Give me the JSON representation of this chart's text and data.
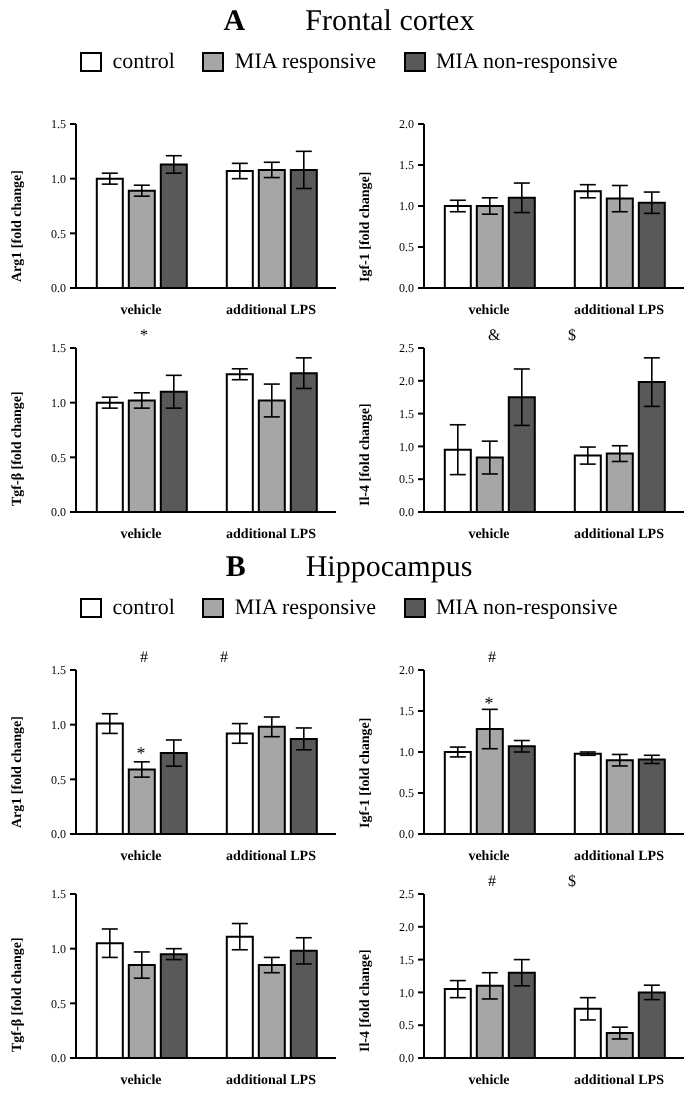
{
  "chart_data": [
    {
      "type": "bar",
      "title": "A",
      "subtitle": "Frontal cortex",
      "legend": "top",
      "ylabel": "Arg1 [fold change]",
      "categories": [
        "vehicle",
        "additional LPS"
      ],
      "ylim": [
        0,
        1.5
      ],
      "yticks": [
        {
          "value": 0,
          "label": "0.0"
        },
        {
          "value": 0.5,
          "label": "0.5"
        },
        {
          "value": 1,
          "label": "1.0"
        },
        {
          "value": 1.5,
          "label": "1.5"
        }
      ],
      "grid": false,
      "series": [
        {
          "name": "control",
          "color": "#ffffff",
          "values": [
            1.0,
            1.07
          ],
          "errors": [
            0.05,
            0.07
          ]
        },
        {
          "name": "MIA responsive",
          "color": "#a6a6a6",
          "values": [
            0.89,
            1.08
          ],
          "errors": [
            0.05,
            0.07
          ]
        },
        {
          "name": "MIA non-responsive",
          "color": "#595959",
          "values": [
            1.13,
            1.08
          ],
          "errors": [
            0.08,
            0.17
          ]
        }
      ]
    },
    {
      "type": "bar",
      "ylabel": "Igf-1 [fold change]",
      "categories": [
        "vehicle",
        "additional LPS"
      ],
      "ylim": [
        0,
        2
      ],
      "yticks": [
        {
          "value": 0,
          "label": "0.0"
        },
        {
          "value": 0.5,
          "label": "0.5"
        },
        {
          "value": 1,
          "label": "1.0"
        },
        {
          "value": 1.5,
          "label": "1.5"
        },
        {
          "value": 2,
          "label": "2.0"
        }
      ],
      "grid": false,
      "series": [
        {
          "color": "#ffffff",
          "values": [
            1.0,
            1.18
          ],
          "errors": [
            0.07,
            0.08
          ]
        },
        {
          "color": "#a6a6a6",
          "values": [
            1.0,
            1.09
          ],
          "errors": [
            0.1,
            0.16
          ]
        },
        {
          "color": "#595959",
          "values": [
            1.1,
            1.04
          ],
          "errors": [
            0.18,
            0.13
          ]
        }
      ]
    },
    {
      "type": "bar",
      "ylabel": "Tgf-β [fold change]",
      "categories": [
        "vehicle",
        "additional LPS"
      ],
      "ylim": [
        0,
        1.5
      ],
      "yticks": [
        {
          "value": 0,
          "label": "0.0"
        },
        {
          "value": 0.5,
          "label": "0.5"
        },
        {
          "value": 1,
          "label": "1.0"
        },
        {
          "value": 1.5,
          "label": "1.5"
        }
      ],
      "grid": false,
      "annotations": [
        "*"
      ],
      "series": [
        {
          "color": "#ffffff",
          "values": [
            1.0,
            1.26
          ],
          "errors": [
            0.05,
            0.05
          ]
        },
        {
          "color": "#a6a6a6",
          "values": [
            1.02,
            1.02
          ],
          "errors": [
            0.07,
            0.15
          ]
        },
        {
          "color": "#595959",
          "values": [
            1.1,
            1.27
          ],
          "errors": [
            0.15,
            0.14
          ]
        }
      ]
    },
    {
      "type": "bar",
      "ylabel": "Il-4 [fold change]",
      "categories": [
        "vehicle",
        "additional LPS"
      ],
      "ylim": [
        0,
        2.5
      ],
      "yticks": [
        {
          "value": 0,
          "label": "0.0"
        },
        {
          "value": 0.5,
          "label": "0.5"
        },
        {
          "value": 1,
          "label": "1.0"
        },
        {
          "value": 1.5,
          "label": "1.5"
        },
        {
          "value": 2,
          "label": "2.0"
        },
        {
          "value": 2.5,
          "label": "2.5"
        }
      ],
      "grid": false,
      "annotations": [
        "&",
        "$"
      ],
      "series": [
        {
          "color": "#ffffff",
          "values": [
            0.95,
            0.86
          ],
          "errors": [
            0.38,
            0.13
          ]
        },
        {
          "color": "#a6a6a6",
          "values": [
            0.83,
            0.89
          ],
          "errors": [
            0.25,
            0.12
          ]
        },
        {
          "color": "#595959",
          "values": [
            1.75,
            1.98
          ],
          "errors": [
            0.43,
            0.37
          ]
        }
      ]
    },
    {
      "type": "bar",
      "title": "B",
      "subtitle": "Hippocampus",
      "legend": "top",
      "ylabel": "Arg1 [fold change]",
      "categories": [
        "vehicle",
        "additional LPS"
      ],
      "ylim": [
        0,
        1.5
      ],
      "yticks": [
        {
          "value": 0,
          "label": "0.0"
        },
        {
          "value": 0.5,
          "label": "0.5"
        },
        {
          "value": 1,
          "label": "1.0"
        },
        {
          "value": 1.5,
          "label": "1.5"
        }
      ],
      "grid": false,
      "annotations": [
        {
          "text": "*",
          "x": "vehicle",
          "y": 0.74
        },
        "#",
        "#"
      ],
      "series": [
        {
          "name": "control",
          "color": "#ffffff",
          "values": [
            1.01,
            0.92
          ],
          "errors": [
            0.09,
            0.09
          ]
        },
        {
          "name": "MIA responsive",
          "color": "#a6a6a6",
          "values": [
            0.59,
            0.98
          ],
          "errors": [
            0.07,
            0.09
          ]
        },
        {
          "name": "MIA non-responsive",
          "color": "#595959",
          "values": [
            0.74,
            0.87
          ],
          "errors": [
            0.12,
            0.1
          ]
        }
      ]
    },
    {
      "type": "bar",
      "ylabel": "Igf-1 [fold change]",
      "categories": [
        "vehicle",
        "additional LPS"
      ],
      "ylim": [
        0,
        2
      ],
      "yticks": [
        {
          "value": 0,
          "label": "0.0"
        },
        {
          "value": 0.5,
          "label": "0.5"
        },
        {
          "value": 1,
          "label": "1.0"
        },
        {
          "value": 1.5,
          "label": "1.5"
        },
        {
          "value": 2,
          "label": "2.0"
        }
      ],
      "grid": false,
      "annotations": [
        {
          "text": "*",
          "x": "vehicle",
          "y": 1.6
        },
        "#"
      ],
      "series": [
        {
          "color": "#ffffff",
          "values": [
            1.0,
            0.98
          ],
          "errors": [
            0.06,
            0.02
          ]
        },
        {
          "color": "#a6a6a6",
          "values": [
            1.28,
            0.9
          ],
          "errors": [
            0.24,
            0.07
          ]
        },
        {
          "color": "#595959",
          "values": [
            1.07,
            0.91
          ],
          "errors": [
            0.07,
            0.05
          ]
        }
      ]
    },
    {
      "type": "bar",
      "ylabel": "Tgf-β [fold change]",
      "categories": [
        "vehicle",
        "additional LPS"
      ],
      "ylim": [
        0,
        1.5
      ],
      "yticks": [
        {
          "value": 0,
          "label": "0.0"
        },
        {
          "value": 0.5,
          "label": "0.5"
        },
        {
          "value": 1,
          "label": "1.0"
        },
        {
          "value": 1.5,
          "label": "1.5"
        }
      ],
      "grid": false,
      "series": [
        {
          "color": "#ffffff",
          "values": [
            1.05,
            1.11
          ],
          "errors": [
            0.13,
            0.12
          ]
        },
        {
          "color": "#a6a6a6",
          "values": [
            0.85,
            0.85
          ],
          "errors": [
            0.12,
            0.07
          ]
        },
        {
          "color": "#595959",
          "values": [
            0.95,
            0.98
          ],
          "errors": [
            0.05,
            0.12
          ]
        }
      ]
    },
    {
      "type": "bar",
      "ylabel": "Il-4 [fold change]",
      "categories": [
        "vehicle",
        "additional LPS"
      ],
      "ylim": [
        0,
        2.5
      ],
      "yticks": [
        {
          "value": 0,
          "label": "0.0"
        },
        {
          "value": 0.5,
          "label": "0.5"
        },
        {
          "value": 1,
          "label": "1.0"
        },
        {
          "value": 1.5,
          "label": "1.5"
        },
        {
          "value": 2,
          "label": "2.0"
        },
        {
          "value": 2.5,
          "label": "2.5"
        }
      ],
      "grid": false,
      "annotations": [
        "#",
        "$"
      ],
      "series": [
        {
          "color": "#ffffff",
          "values": [
            1.05,
            0.75
          ],
          "errors": [
            0.13,
            0.17
          ]
        },
        {
          "color": "#a6a6a6",
          "values": [
            1.1,
            0.38
          ],
          "errors": [
            0.2,
            0.09
          ]
        },
        {
          "color": "#595959",
          "values": [
            1.3,
            1.0
          ],
          "errors": [
            0.2,
            0.11
          ]
        }
      ]
    }
  ]
}
